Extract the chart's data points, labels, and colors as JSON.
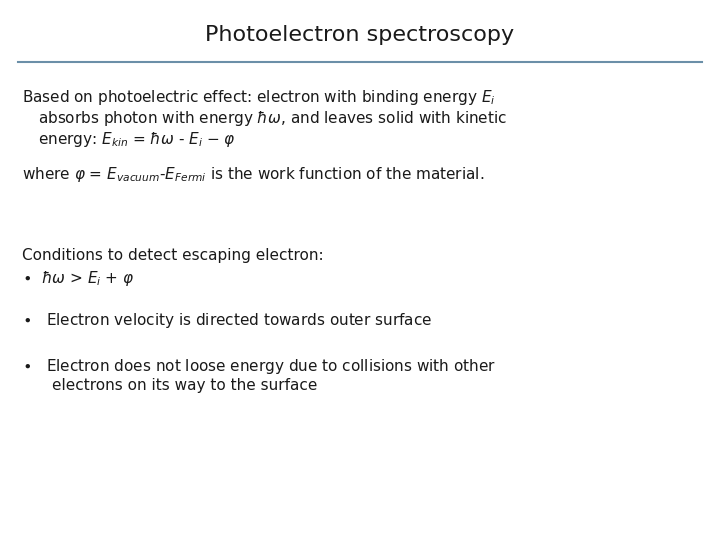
{
  "title": "Photoelectron spectroscopy",
  "title_fontsize": 16,
  "title_color": "#1a1a1a",
  "line_color": "#6b8fa8",
  "background_color": "#ffffff",
  "body_fontsize": 11,
  "body_color": "#1a1a1a",
  "fig_width": 7.2,
  "fig_height": 5.4,
  "dpi": 100
}
